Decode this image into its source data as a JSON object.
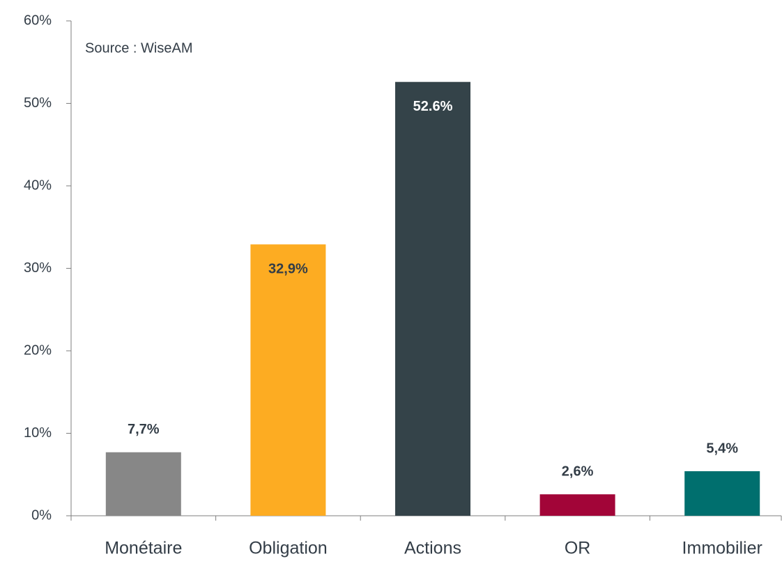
{
  "chart_data": {
    "type": "bar",
    "annotation": "Source : WiseAM",
    "categories": [
      "Monétaire",
      "Obligation",
      "Actions",
      "OR",
      "Immobilier"
    ],
    "values": [
      7.7,
      32.9,
      52.6,
      2.6,
      5.4
    ],
    "value_labels": [
      "7,7%",
      "32,9%",
      "52.6%",
      "2,6%",
      "5,4%"
    ],
    "colors": [
      "#878787",
      "#fdac22",
      "#344349",
      "#a20538",
      "#006f6e"
    ],
    "ylim": [
      0,
      60
    ],
    "yticks": [
      {
        "value": 0,
        "label": "0%"
      },
      {
        "value": 10,
        "label": "10%"
      },
      {
        "value": 20,
        "label": "20%"
      },
      {
        "value": 30,
        "label": "30%"
      },
      {
        "value": 40,
        "label": "40%"
      },
      {
        "value": 50,
        "label": "50%"
      },
      {
        "value": 60,
        "label": "60%"
      }
    ],
    "grid": false
  }
}
